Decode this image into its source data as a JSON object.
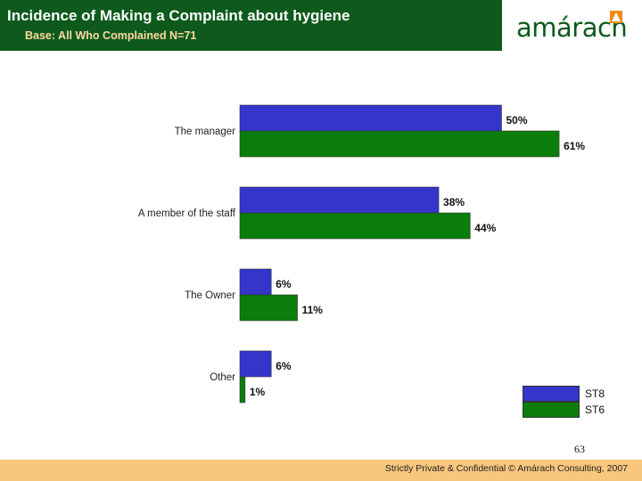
{
  "header": {
    "title": "Incidence of Making a Complaint about hygiene",
    "subtitle": "Base: All Who Complained N=71",
    "logo_text": "amárach"
  },
  "colors": {
    "header_bg": "#0e5a1c",
    "st8": "#3535cc",
    "st6": "#0b7d0b",
    "footer_bg": "#f8c67d"
  },
  "chart_data": {
    "type": "bar",
    "orientation": "horizontal",
    "categories": [
      "The manager",
      "A member of the staff",
      "The Owner",
      "Other"
    ],
    "series": [
      {
        "name": "ST8",
        "values": [
          50,
          38,
          6,
          6
        ],
        "labels": [
          "50%",
          "38%",
          "6%",
          "6%"
        ]
      },
      {
        "name": "ST6",
        "values": [
          61,
          44,
          11,
          1
        ],
        "labels": [
          "61%",
          "44%",
          "11%",
          "1%"
        ]
      }
    ],
    "unit": "%",
    "xlim": [
      0,
      100
    ],
    "legend_position": "bottom-right",
    "grid": false
  },
  "legend": [
    {
      "label": "ST8",
      "color": "#3535cc"
    },
    {
      "label": "ST6",
      "color": "#0b7d0b"
    }
  ],
  "page_number": "63",
  "footer": "Strictly Private & Confidential © Amárach Consulting, 2007"
}
